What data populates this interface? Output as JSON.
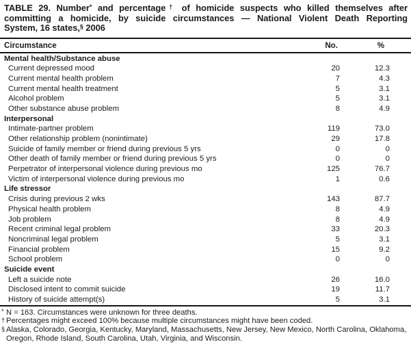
{
  "title": {
    "lines": [
      [
        {
          "text": "TABLE 29. Number"
        },
        {
          "text": "*",
          "sup": true
        },
        {
          "text": " and percentage"
        },
        {
          "text": "†",
          "sup": true
        },
        {
          "text": " of homicide suspects who killed themselves after"
        }
      ],
      [
        {
          "text": "committing a homicide, by suicide circumstances — National Violent Death Reporting"
        }
      ],
      [
        {
          "text": "System, 16 states,"
        },
        {
          "text": "§",
          "sup": true
        },
        {
          "text": " 2006"
        }
      ]
    ]
  },
  "table": {
    "columns": {
      "circumstance": "Circumstance",
      "no": "No.",
      "pct": "%"
    },
    "rows": [
      {
        "type": "section",
        "label": "Mental health/Substance abuse",
        "no": "",
        "pct": ""
      },
      {
        "type": "data",
        "label": "Current depressed mood",
        "no": "20",
        "pct": "12.3"
      },
      {
        "type": "data",
        "label": "Current mental health problem",
        "no": "7",
        "pct": "4.3"
      },
      {
        "type": "data",
        "label": "Current mental health treatment",
        "no": "5",
        "pct": "3.1"
      },
      {
        "type": "data",
        "label": "Alcohol problem",
        "no": "5",
        "pct": "3.1"
      },
      {
        "type": "data",
        "label": "Other substance abuse problem",
        "no": "8",
        "pct": "4.9"
      },
      {
        "type": "section",
        "label": "Interpersonal",
        "no": "",
        "pct": ""
      },
      {
        "type": "data",
        "label": "Intimate-partner problem",
        "no": "119",
        "pct": "73.0"
      },
      {
        "type": "data",
        "label": "Other relationship problem (nonintimate)",
        "no": "29",
        "pct": "17.8"
      },
      {
        "type": "data",
        "label": "Suicide of family member or friend during previous 5 yrs",
        "no": "0",
        "pct": "0"
      },
      {
        "type": "data",
        "label": "Other death of family member or friend during previous 5 yrs",
        "no": "0",
        "pct": "0"
      },
      {
        "type": "data",
        "label": "Perpetrator of interpersonal violence during previous mo",
        "no": "125",
        "pct": "76.7"
      },
      {
        "type": "data",
        "label": "Victim of interpersonal violence during previous mo",
        "no": "1",
        "pct": "0.6"
      },
      {
        "type": "section",
        "label": "Life stressor",
        "no": "",
        "pct": ""
      },
      {
        "type": "data",
        "label": "Crisis during previous 2 wks",
        "no": "143",
        "pct": "87.7"
      },
      {
        "type": "data",
        "label": "Physical health problem",
        "no": "8",
        "pct": "4.9"
      },
      {
        "type": "data",
        "label": "Job problem",
        "no": "8",
        "pct": "4.9"
      },
      {
        "type": "data",
        "label": "Recent criminal legal problem",
        "no": "33",
        "pct": "20.3"
      },
      {
        "type": "data",
        "label": "Noncriminal legal problem",
        "no": "5",
        "pct": "3.1"
      },
      {
        "type": "data",
        "label": "Financial problem",
        "no": "15",
        "pct": "9.2"
      },
      {
        "type": "data",
        "label": "School problem",
        "no": "0",
        "pct": "0"
      },
      {
        "type": "section",
        "label": "Suicide event",
        "no": "",
        "pct": ""
      },
      {
        "type": "data",
        "label": "Left a suicide note",
        "no": "26",
        "pct": "16.0"
      },
      {
        "type": "data",
        "label": "Disclosed intent to commit suicide",
        "no": "19",
        "pct": "11.7"
      },
      {
        "type": "data",
        "label": "History of suicide attempt(s)",
        "no": "5",
        "pct": "3.1"
      }
    ]
  },
  "footnotes": [
    {
      "marker": "*",
      "text": "N = 163. Circumstances were unknown for three deaths."
    },
    {
      "marker": "†",
      "text": "Percentages might exceed 100% because multiple circumstances might have been coded."
    },
    {
      "marker": "§",
      "text": "Alaska, Colorado, Georgia, Kentucky, Maryland, Massachusetts, New Jersey, New Mexico, North Carolina, Oklahoma, Oregon, Rhode Island, South Carolina, Utah, Virginia, and Wisconsin."
    }
  ],
  "colors": {
    "text": "#1b1b1b",
    "rule": "#151515",
    "background": "#ffffff"
  }
}
